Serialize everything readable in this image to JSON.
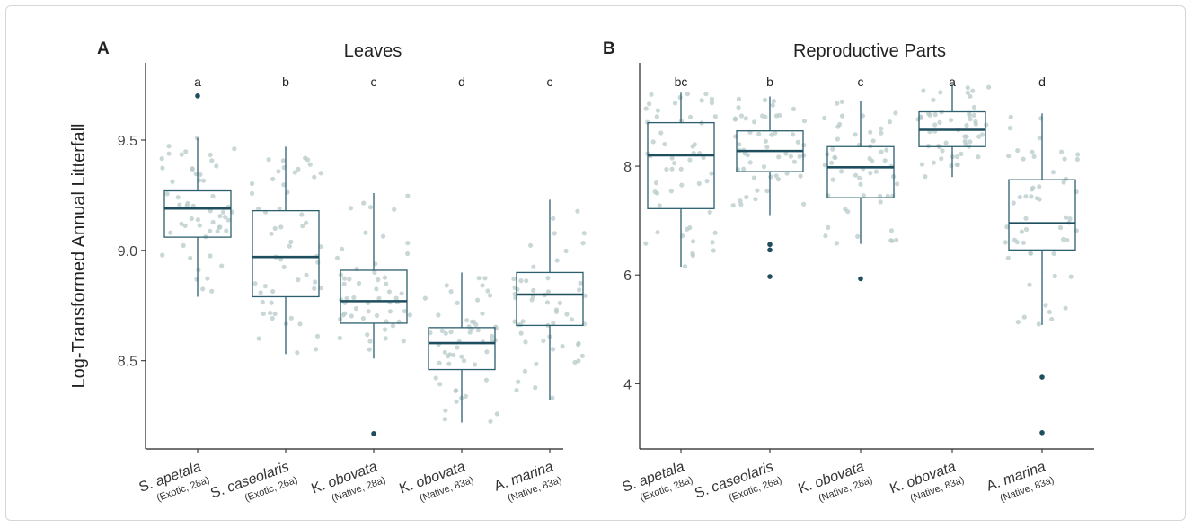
{
  "colors": {
    "box": "#2c5f6e",
    "median": "#1f4e5e",
    "outlier": "#1f4e5e",
    "jitter": "#b7c9c9",
    "axis": "#222222",
    "text": "#222222"
  },
  "y_axis_label": "Log-Transformed Annual Litterfall",
  "chart_data": [
    {
      "type": "box",
      "panel_letter": "A",
      "title": "Leaves",
      "ylabel": "Log-Transformed Annual Litterfall",
      "ylim": [
        8.1,
        9.85
      ],
      "yticks": [
        8.5,
        9.0,
        9.5
      ],
      "ytick_labels": [
        "8.5",
        "9.0",
        "9.5"
      ],
      "categories": [
        {
          "species": "S. apetala",
          "detail": "(Exotic, 28a)"
        },
        {
          "species": "S. caseolaris",
          "detail": "(Exotic, 26a)"
        },
        {
          "species": "K. obovata",
          "detail": "(Native, 28a)"
        },
        {
          "species": "K. obovata",
          "detail": "(Native, 83a)"
        },
        {
          "species": "A. marina",
          "detail": "(Native, 83a)"
        }
      ],
      "significance_letters": [
        "a",
        "b",
        "c",
        "d",
        "c"
      ],
      "boxes": [
        {
          "whisker_low": 8.79,
          "q1": 9.06,
          "median": 9.19,
          "q3": 9.27,
          "whisker_high": 9.51,
          "outliers": [
            9.7
          ]
        },
        {
          "whisker_low": 8.53,
          "q1": 8.79,
          "median": 8.97,
          "q3": 9.18,
          "whisker_high": 9.47,
          "outliers": []
        },
        {
          "whisker_low": 8.51,
          "q1": 8.67,
          "median": 8.77,
          "q3": 8.91,
          "whisker_high": 9.26,
          "outliers": [
            8.17
          ]
        },
        {
          "whisker_low": 8.22,
          "q1": 8.46,
          "median": 8.58,
          "q3": 8.65,
          "whisker_high": 8.9,
          "outliers": []
        },
        {
          "whisker_low": 8.32,
          "q1": 8.66,
          "median": 8.8,
          "q3": 8.9,
          "whisker_high": 9.23,
          "outliers": []
        }
      ],
      "grid": false
    },
    {
      "type": "box",
      "panel_letter": "B",
      "title": "Reproductive Parts",
      "ylabel": "",
      "ylim": [
        2.8,
        9.9
      ],
      "yticks": [
        4,
        6,
        8
      ],
      "ytick_labels": [
        "4",
        "6",
        "8"
      ],
      "categories": [
        {
          "species": "S. apetala",
          "detail": "(Exotic, 28a)"
        },
        {
          "species": "S. caseolaris",
          "detail": "(Exotic, 26a)"
        },
        {
          "species": "K. obovata",
          "detail": "(Native, 28a)"
        },
        {
          "species": "K. obovata",
          "detail": "(Native, 83a)"
        },
        {
          "species": "A. marina",
          "detail": "(Native, 83a)"
        }
      ],
      "significance_letters": [
        "bc",
        "b",
        "c",
        "a",
        "d"
      ],
      "boxes": [
        {
          "whisker_low": 6.15,
          "q1": 7.22,
          "median": 8.2,
          "q3": 8.8,
          "whisker_high": 9.35,
          "outliers": []
        },
        {
          "whisker_low": 7.1,
          "q1": 7.9,
          "median": 8.28,
          "q3": 8.65,
          "whisker_high": 9.28,
          "outliers": [
            6.56,
            6.46,
            5.97
          ]
        },
        {
          "whisker_low": 6.57,
          "q1": 7.42,
          "median": 7.98,
          "q3": 8.36,
          "whisker_high": 9.2,
          "outliers": [
            5.93
          ]
        },
        {
          "whisker_low": 7.8,
          "q1": 8.36,
          "median": 8.67,
          "q3": 9.0,
          "whisker_high": 9.5,
          "outliers": []
        },
        {
          "whisker_low": 5.08,
          "q1": 6.46,
          "median": 6.95,
          "q3": 7.75,
          "whisker_high": 8.97,
          "outliers": [
            4.12,
            3.1
          ]
        }
      ],
      "grid": false
    }
  ]
}
